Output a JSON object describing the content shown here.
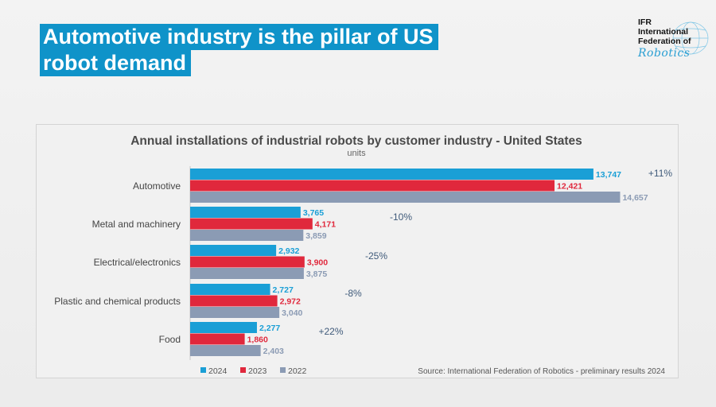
{
  "slide": {
    "title_line1": "Automotive industry is the pillar of US",
    "title_line2": "robot demand"
  },
  "logo": {
    "line1": "IFR",
    "line2": "International",
    "line3": "Federation of",
    "line4": "Robotics"
  },
  "colors": {
    "title_bg": "#0f93c9",
    "s2024": "#1a9fd6",
    "s2023": "#e0283c",
    "s2022": "#8b9bb4",
    "change_text": "#3f5a7a"
  },
  "chart_data": {
    "type": "bar",
    "orientation": "horizontal",
    "title": "Annual installations of industrial robots by customer industry - United States",
    "subtitle": "units",
    "categories": [
      "Automotive",
      "Metal and machinery",
      "Electrical/electronics",
      "Plastic and chemical products",
      "Food"
    ],
    "series": [
      {
        "name": "2024",
        "color": "#1a9fd6",
        "values": [
          13747,
          3765,
          2932,
          2727,
          2277
        ],
        "labels": [
          "13,747",
          "3,765",
          "2,932",
          "2,727",
          "2,277"
        ]
      },
      {
        "name": "2023",
        "color": "#e0283c",
        "values": [
          12421,
          4171,
          3900,
          2972,
          1860
        ],
        "labels": [
          "12,421",
          "4,171",
          "3,900",
          "2,972",
          "1,860"
        ]
      },
      {
        "name": "2022",
        "color": "#8b9bb4",
        "values": [
          14657,
          3859,
          3875,
          3040,
          2403
        ],
        "labels": [
          "14,657",
          "3,859",
          "3,875",
          "3,040",
          "2,403"
        ]
      }
    ],
    "changes": [
      "+11%",
      "-10%",
      "-25%",
      "-8%",
      "+22%"
    ],
    "xlim": [
      0,
      16000
    ],
    "grid": false,
    "legend_position": "bottom-left",
    "source": "Source: International Federation of Robotics - preliminary results 2024"
  }
}
